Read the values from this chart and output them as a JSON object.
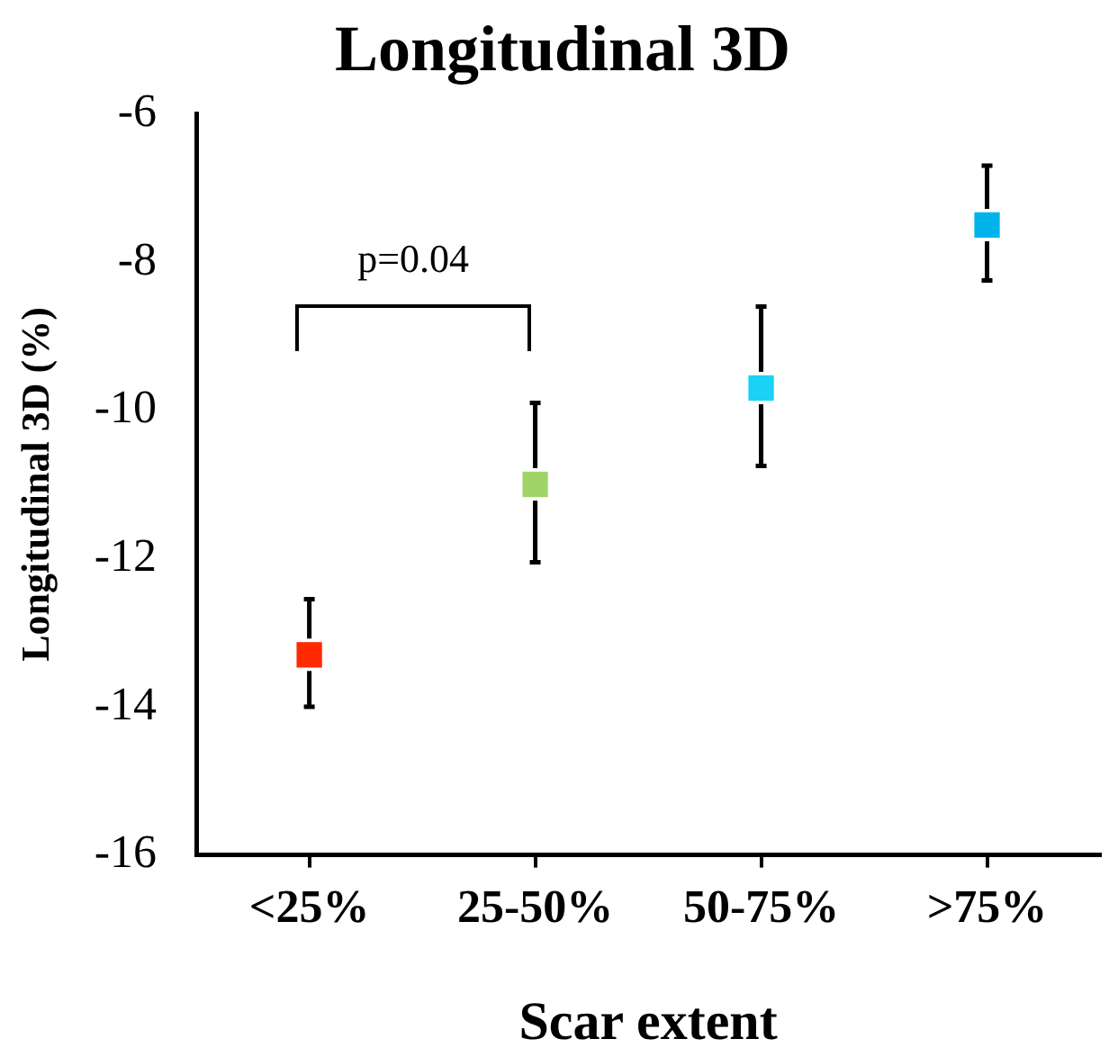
{
  "chart_data": {
    "type": "scatter",
    "title": "Longitudinal 3D",
    "xlabel": "Scar extent",
    "ylabel": "Longitudinal 3D (%)",
    "categories": [
      "<25%",
      "25-50%",
      "50-75%",
      ">75%"
    ],
    "values": [
      -13.3,
      -11.0,
      -9.7,
      -7.5
    ],
    "colors": [
      "#ff2a00",
      "#a0d468",
      "#19d2f5",
      "#00b4eb"
    ],
    "errors": [
      [
        -14.0,
        -12.55
      ],
      [
        -12.05,
        -9.9
      ],
      [
        -10.75,
        -8.6
      ],
      [
        -8.25,
        -6.7
      ]
    ],
    "marker": "square",
    "ylim": [
      -16,
      -6
    ],
    "yticks": [
      -16,
      -14,
      -12,
      -10,
      -8,
      -6
    ],
    "annotations": [
      "p=0.04"
    ]
  }
}
